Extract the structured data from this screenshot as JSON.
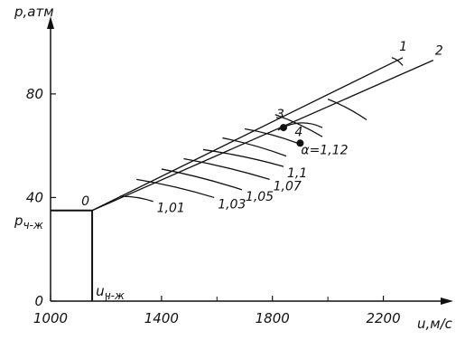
{
  "chart_data": {
    "type": "line",
    "xlabel": "u,м/с",
    "ylabel": "p,атм",
    "x_ticks": [
      "1000",
      "1400",
      "1800",
      "2200"
    ],
    "x_tick_values": [
      1000,
      1400,
      1800,
      2200
    ],
    "y_ticks": [
      "0",
      "40",
      "80"
    ],
    "y_tick_values": [
      0,
      40,
      80
    ],
    "xlim": [
      1000,
      2400
    ],
    "ylim": [
      0,
      103
    ],
    "p_label": "p",
    "p_sub": "ч-ж",
    "u_label": "u",
    "u_sub": "ч-ж",
    "vertical_line": {
      "x": 1150,
      "y": [
        0,
        35
      ]
    },
    "horizontal_line": {
      "x": [
        1000,
        1150
      ],
      "y": 35
    },
    "series": [
      {
        "name": "1",
        "x": [
          1150,
          2270
        ],
        "y": [
          35,
          94
        ]
      },
      {
        "name": "2",
        "x": [
          1150,
          2380
        ],
        "y": [
          35,
          93
        ]
      }
    ],
    "crossing_curves": [
      {
        "label": "1,01",
        "x": [
          1250,
          1370
        ],
        "y": [
          40.5,
          38.5
        ]
      },
      {
        "label": "1,03",
        "x": [
          1310,
          1590
        ],
        "y": [
          47,
          40
        ]
      },
      {
        "label": "1,05",
        "x": [
          1400,
          1690
        ],
        "y": [
          51,
          43
        ]
      },
      {
        "label": "1,07",
        "x": [
          1480,
          1790
        ],
        "y": [
          55,
          47
        ]
      },
      {
        "label": "1,1",
        "x": [
          1550,
          1840
        ],
        "y": [
          58.5,
          52
        ]
      },
      {
        "label": "",
        "x": [
          1620,
          1850
        ],
        "y": [
          63,
          56
        ]
      },
      {
        "label": "α=1,12",
        "x": [
          1700,
          1890
        ],
        "y": [
          66.5,
          61
        ]
      },
      {
        "label": "",
        "x": [
          1810,
          1980
        ],
        "y": [
          72,
          63.5
        ]
      },
      {
        "label": "",
        "x": [
          2000,
          2140
        ],
        "y": [
          78,
          70
        ]
      },
      {
        "label": "",
        "x": [
          2230,
          2270
        ],
        "y": [
          94,
          91
        ]
      }
    ],
    "extra_curve": {
      "x": [
        1820,
        1900,
        1980
      ],
      "y": [
        66,
        69,
        67
      ]
    },
    "points": [
      {
        "label": "0",
        "x": 1150,
        "y": 35
      },
      {
        "label": "1",
        "x": 2270,
        "y": 94
      },
      {
        "label": "2",
        "x": 2380,
        "y": 93
      },
      {
        "label": "3",
        "x": 1840,
        "y": 67
      },
      {
        "label": "4",
        "x": 1900,
        "y": 61
      }
    ]
  }
}
